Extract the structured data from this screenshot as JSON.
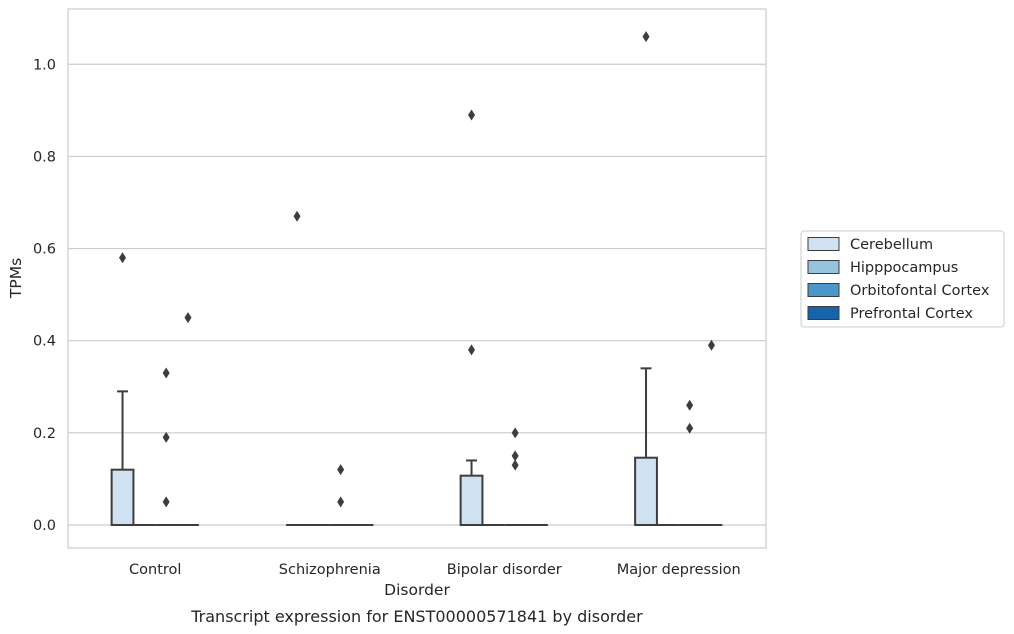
{
  "chart_data": {
    "type": "box",
    "xlabel": "Disorder",
    "ylabel": "TPMs",
    "caption": "Transcript expression for ENST00000571841 by disorder",
    "ylim": [
      -0.05,
      1.12
    ],
    "yticks": [
      0.0,
      0.2,
      0.4,
      0.6,
      0.8,
      1.0
    ],
    "ytick_labels": [
      "0.0",
      "0.2",
      "0.4",
      "0.6",
      "0.8",
      "1.0"
    ],
    "grid": "horizontal",
    "legend_position": "right",
    "categories": [
      "Control",
      "Schizophrenia",
      "Bipolar disorder",
      "Major depression"
    ],
    "series": [
      {
        "name": "Cerebellum",
        "color": "#d0e1f2",
        "boxes": [
          {
            "q1": 0.0,
            "median": 0.0,
            "q3": 0.12,
            "whisker_low": 0.0,
            "whisker_high": 0.29,
            "outliers": [
              0.58
            ]
          },
          {
            "q1": 0.0,
            "median": 0.0,
            "q3": 0.0,
            "whisker_low": 0.0,
            "whisker_high": 0.0,
            "outliers": [
              0.67
            ]
          },
          {
            "q1": 0.0,
            "median": 0.0,
            "q3": 0.107,
            "whisker_low": 0.0,
            "whisker_high": 0.14,
            "outliers": [
              0.38,
              0.89
            ]
          },
          {
            "q1": 0.0,
            "median": 0.0,
            "q3": 0.146,
            "whisker_low": 0.0,
            "whisker_high": 0.34,
            "outliers": [
              1.06
            ]
          }
        ]
      },
      {
        "name": "Hipppocampus",
        "color": "#94c4df",
        "boxes": [
          {
            "q1": 0.0,
            "median": 0.0,
            "q3": 0.0,
            "whisker_low": 0.0,
            "whisker_high": 0.0,
            "outliers": []
          },
          {
            "q1": 0.0,
            "median": 0.0,
            "q3": 0.0,
            "whisker_low": 0.0,
            "whisker_high": 0.0,
            "outliers": []
          },
          {
            "q1": 0.0,
            "median": 0.0,
            "q3": 0.0,
            "whisker_low": 0.0,
            "whisker_high": 0.0,
            "outliers": []
          },
          {
            "q1": 0.0,
            "median": 0.0,
            "q3": 0.0,
            "whisker_low": 0.0,
            "whisker_high": 0.0,
            "outliers": []
          }
        ]
      },
      {
        "name": "Orbitofontal Cortex",
        "color": "#4a98c9",
        "boxes": [
          {
            "q1": 0.0,
            "median": 0.0,
            "q3": 0.0,
            "whisker_low": 0.0,
            "whisker_high": 0.0,
            "outliers": [
              0.05,
              0.19,
              0.33
            ]
          },
          {
            "q1": 0.0,
            "median": 0.0,
            "q3": 0.0,
            "whisker_low": 0.0,
            "whisker_high": 0.0,
            "outliers": [
              0.05,
              0.12
            ]
          },
          {
            "q1": 0.0,
            "median": 0.0,
            "q3": 0.0,
            "whisker_low": 0.0,
            "whisker_high": 0.0,
            "outliers": [
              0.13,
              0.15,
              0.2
            ]
          },
          {
            "q1": 0.0,
            "median": 0.0,
            "q3": 0.0,
            "whisker_low": 0.0,
            "whisker_high": 0.0,
            "outliers": [
              0.21,
              0.26
            ]
          }
        ]
      },
      {
        "name": "Prefrontal Cortex",
        "color": "#1764ab",
        "boxes": [
          {
            "q1": 0.0,
            "median": 0.0,
            "q3": 0.0,
            "whisker_low": 0.0,
            "whisker_high": 0.0,
            "outliers": [
              0.45
            ]
          },
          {
            "q1": 0.0,
            "median": 0.0,
            "q3": 0.0,
            "whisker_low": 0.0,
            "whisker_high": 0.0,
            "outliers": []
          },
          {
            "q1": 0.0,
            "median": 0.0,
            "q3": 0.0,
            "whisker_low": 0.0,
            "whisker_high": 0.0,
            "outliers": []
          },
          {
            "q1": 0.0,
            "median": 0.0,
            "q3": 0.0,
            "whisker_low": 0.0,
            "whisker_high": 0.0,
            "outliers": [
              0.39
            ]
          }
        ]
      }
    ]
  }
}
